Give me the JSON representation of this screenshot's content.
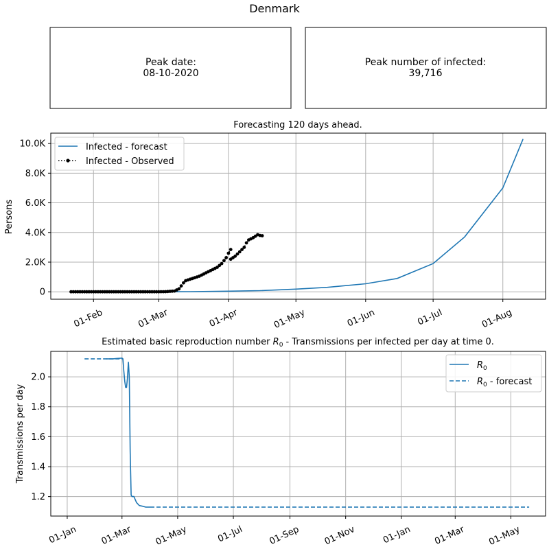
{
  "figure": {
    "title": "Denmark",
    "peak_date_label": "Peak date:",
    "peak_date_value": "08-10-2020",
    "peak_infected_label": "Peak number of infected:",
    "peak_infected_value": "39,716"
  },
  "chart_data": [
    {
      "type": "line",
      "title": "Forecasting 120 days ahead.",
      "xlabel": "",
      "ylabel": "Persons",
      "grid": true,
      "legend_position": "top-left",
      "x_tick_labels": [
        "01-Feb",
        "01-Mar",
        "01-Apr",
        "01-May",
        "01-Jun",
        "01-Jul",
        "01-Aug"
      ],
      "y_tick_labels": [
        "0",
        "2.0K",
        "4.0K",
        "6.0K",
        "8.0K",
        "10.0K"
      ],
      "y_ticks": [
        0,
        2000,
        4000,
        6000,
        8000,
        10000
      ],
      "xlim": [
        "2020-01-13",
        "2020-08-20"
      ],
      "ylim": [
        -500,
        10700
      ],
      "series": [
        {
          "name": "Infected - forecast",
          "style": "solid",
          "color": "#1f77b4",
          "points": [
            [
              "2020-03-02",
              0
            ],
            [
              "2020-03-15",
              10
            ],
            [
              "2020-04-01",
              40
            ],
            [
              "2020-04-15",
              80
            ],
            [
              "2020-05-01",
              180
            ],
            [
              "2020-05-15",
              300
            ],
            [
              "2020-06-01",
              540
            ],
            [
              "2020-06-15",
              900
            ],
            [
              "2020-07-01",
              1900
            ],
            [
              "2020-07-15",
              3700
            ],
            [
              "2020-08-01",
              7000
            ],
            [
              "2020-08-10",
              10300
            ]
          ]
        },
        {
          "name": "Infected - Observed",
          "style": "dotted-marker",
          "color": "#000000",
          "segments": [
            [
              [
                "2020-01-22",
                0
              ],
              [
                "2020-01-25",
                0
              ],
              [
                "2020-01-28",
                0
              ],
              [
                "2020-01-31",
                0
              ],
              [
                "2020-02-03",
                0
              ],
              [
                "2020-02-06",
                0
              ],
              [
                "2020-02-09",
                0
              ],
              [
                "2020-02-12",
                0
              ],
              [
                "2020-02-15",
                0
              ],
              [
                "2020-02-18",
                0
              ],
              [
                "2020-02-21",
                0
              ],
              [
                "2020-02-24",
                0
              ],
              [
                "2020-02-27",
                0
              ],
              [
                "2020-03-01",
                0
              ],
              [
                "2020-03-04",
                10
              ],
              [
                "2020-03-06",
                30
              ],
              [
                "2020-03-08",
                50
              ],
              [
                "2020-03-10",
                200
              ],
              [
                "2020-03-11",
                400
              ],
              [
                "2020-03-12",
                600
              ],
              [
                "2020-03-13",
                750
              ],
              [
                "2020-03-15",
                850
              ],
              [
                "2020-03-17",
                950
              ],
              [
                "2020-03-19",
                1050
              ],
              [
                "2020-03-21",
                1200
              ],
              [
                "2020-03-23",
                1350
              ],
              [
                "2020-03-25",
                1500
              ],
              [
                "2020-03-27",
                1650
              ],
              [
                "2020-03-29",
                1900
              ],
              [
                "2020-03-31",
                2300
              ],
              [
                "2020-04-01",
                2600
              ],
              [
                "2020-04-02",
                2850
              ]
            ],
            [
              [
                "2020-04-02",
                2200
              ],
              [
                "2020-04-04",
                2400
              ],
              [
                "2020-04-06",
                2700
              ],
              [
                "2020-04-08",
                3000
              ],
              [
                "2020-04-09",
                3300
              ],
              [
                "2020-04-10",
                3500
              ],
              [
                "2020-04-12",
                3650
              ],
              [
                "2020-04-13",
                3750
              ],
              [
                "2020-04-14",
                3850
              ],
              [
                "2020-04-15",
                3800
              ],
              [
                "2020-04-16",
                3780
              ]
            ]
          ]
        }
      ]
    },
    {
      "type": "line",
      "title": "Estimated basic reproduction number R0 - Transmissions per infected per day at time 0.",
      "title_prefix": "Estimated basic reproduction number ",
      "title_symbol": "R",
      "title_subscript": "0",
      "title_suffix": " - Transmissions per infected per day at time 0.",
      "xlabel": "",
      "ylabel": "Transmissions per day",
      "grid": true,
      "legend_position": "top-right",
      "x_tick_labels": [
        "01-Jan",
        "01-Mar",
        "01-May",
        "01-Jul",
        "01-Sep",
        "01-Nov",
        "01-Jan",
        "01-Mar",
        "01-May"
      ],
      "y_tick_labels": [
        "1.2",
        "1.4",
        "1.6",
        "1.8",
        "2.0"
      ],
      "y_ticks": [
        1.2,
        1.4,
        1.6,
        1.8,
        2.0
      ],
      "xlim": [
        "2019-12-14",
        "2021-06-08"
      ],
      "ylim": [
        1.07,
        2.17
      ],
      "series": [
        {
          "name": "R0",
          "name_symbol": "R",
          "name_subscript": "0",
          "name_suffix": "",
          "style": "solid",
          "color": "#1f77b4",
          "points": [
            [
              "2020-02-13",
              2.12
            ],
            [
              "2020-02-20",
              2.12
            ],
            [
              "2020-02-25",
              2.123
            ],
            [
              "2020-03-01",
              2.125
            ],
            [
              "2020-03-02",
              2.12
            ],
            [
              "2020-03-03",
              2.04
            ],
            [
              "2020-03-04",
              1.97
            ],
            [
              "2020-03-05",
              1.93
            ],
            [
              "2020-03-06",
              1.93
            ],
            [
              "2020-03-07",
              1.99
            ],
            [
              "2020-03-08",
              2.1
            ],
            [
              "2020-03-09",
              2.0
            ],
            [
              "2020-03-10",
              1.5
            ],
            [
              "2020-03-11",
              1.21
            ],
            [
              "2020-03-12",
              1.2
            ],
            [
              "2020-03-14",
              1.2
            ],
            [
              "2020-03-17",
              1.16
            ],
            [
              "2020-03-20",
              1.14
            ],
            [
              "2020-03-24",
              1.135
            ],
            [
              "2020-03-27",
              1.13
            ],
            [
              "2020-04-01",
              1.13
            ]
          ]
        },
        {
          "name": "R0 - forecast",
          "name_symbol": "R",
          "name_subscript": "0",
          "name_suffix": " - forecast",
          "style": "dashed",
          "color": "#1f77b4",
          "points": [
            [
              "2020-01-20",
              2.12
            ],
            [
              "2020-03-02",
              2.12
            ]
          ],
          "points_tail": [
            [
              "2020-04-01",
              1.13
            ],
            [
              "2021-05-21",
              1.13
            ]
          ]
        }
      ]
    }
  ]
}
